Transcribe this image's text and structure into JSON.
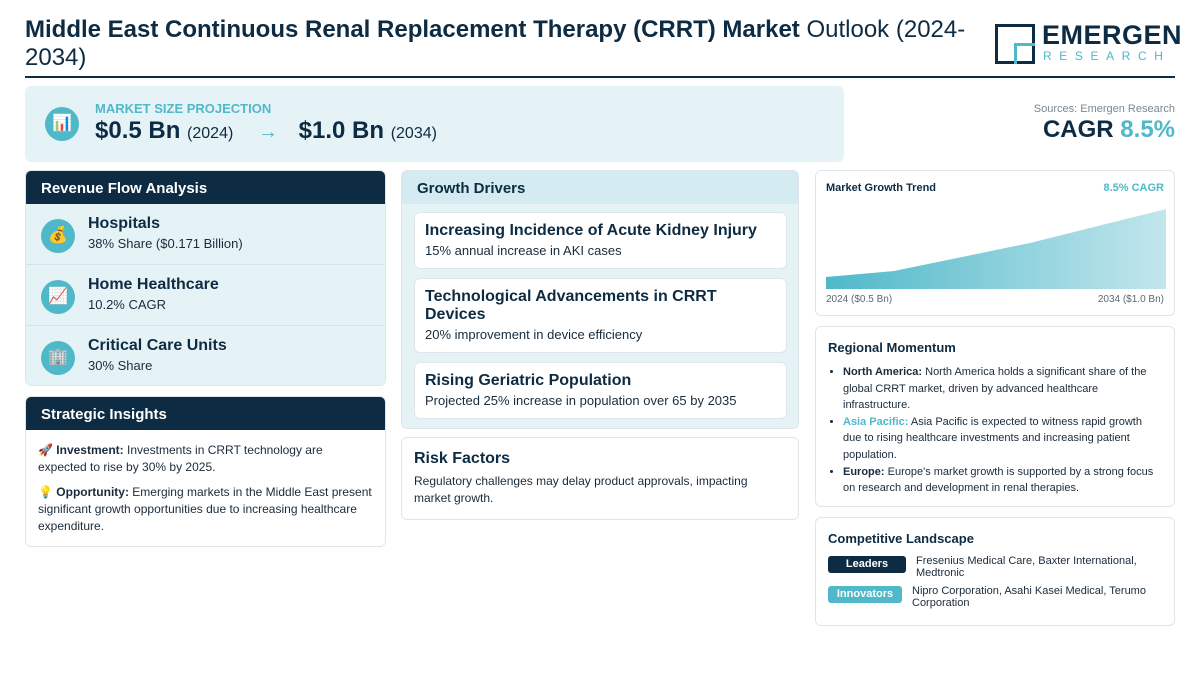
{
  "header": {
    "title_bold": "Middle East Continuous Renal Replacement Therapy (CRRT) Market",
    "title_light": "Outlook (2024-2034)",
    "logo_main": "EMERGEN",
    "logo_sub": "RESEARCH"
  },
  "projection": {
    "icon": "bar-chart-icon",
    "label": "MARKET SIZE PROJECTION",
    "start_value": "$0.5 Bn",
    "start_year": "(2024)",
    "arrow": "→",
    "end_value": "$1.0 Bn",
    "end_year": "(2034)"
  },
  "summary": {
    "sources": "Sources: Emergen Research",
    "cagr_label": "CAGR",
    "cagr_value": "8.5%"
  },
  "revenue": {
    "title": "Revenue Flow Analysis",
    "items": [
      {
        "icon": "money-bag-icon",
        "glyph": "💰",
        "name": "Hospitals",
        "sub": "38% Share ($0.171 Billion)"
      },
      {
        "icon": "trend-up-icon",
        "glyph": "📈",
        "name": "Home Healthcare",
        "sub": "10.2% CAGR"
      },
      {
        "icon": "building-icon",
        "glyph": "🏢",
        "name": "Critical Care Units",
        "sub": "30% Share"
      }
    ]
  },
  "insights": {
    "title": "Strategic Insights",
    "items": [
      {
        "icon": "rocket-icon",
        "glyph": "🚀",
        "label": "Investment:",
        "text": "Investments in CRRT technology are expected to rise by 30% by 2025."
      },
      {
        "icon": "lightbulb-icon",
        "glyph": "💡",
        "label": "Opportunity:",
        "text": "Emerging markets in the Middle East present significant growth opportunities due to increasing healthcare expenditure."
      }
    ]
  },
  "growth": {
    "title": "Growth Drivers",
    "items": [
      {
        "title": "Increasing Incidence of Acute Kidney Injury",
        "sub": "15% annual increase in AKI cases"
      },
      {
        "title": "Technological Advancements in CRRT Devices",
        "sub": "20% improvement in device efficiency"
      },
      {
        "title": "Rising Geriatric Population",
        "sub": "Projected 25% increase in population over 65 by 2035"
      }
    ]
  },
  "risk": {
    "title": "Risk Factors",
    "text": "Regulatory challenges may delay product approvals, impacting market growth."
  },
  "trend": {
    "title": "Market Growth Trend",
    "cagr": "8.5% CAGR",
    "start_label": "2024 ($0.5 Bn)",
    "end_label": "2034 ($1.0 Bn)",
    "color": "#4fb8c9"
  },
  "regional": {
    "title": "Regional Momentum",
    "items": [
      {
        "name": "North America:",
        "text": "North America holds a significant share of the global CRRT market, driven by advanced healthcare infrastructure.",
        "highlight": false
      },
      {
        "name": "Asia Pacific:",
        "text": "Asia Pacific is expected to witness rapid growth due to rising healthcare investments and increasing patient population.",
        "highlight": true
      },
      {
        "name": "Europe:",
        "text": "Europe's market growth is supported by a strong focus on research and development in renal therapies.",
        "highlight": false
      }
    ]
  },
  "competitive": {
    "title": "Competitive Landscape",
    "rows": [
      {
        "badge": "Leaders",
        "names": "Fresenius Medical Care, Baxter International, Medtronic",
        "color": "#0d2b42"
      },
      {
        "badge": "Innovators",
        "names": "Nipro Corporation, Asahi Kasei Medical, Terumo Corporation",
        "color": "#4fb8c9"
      }
    ]
  }
}
